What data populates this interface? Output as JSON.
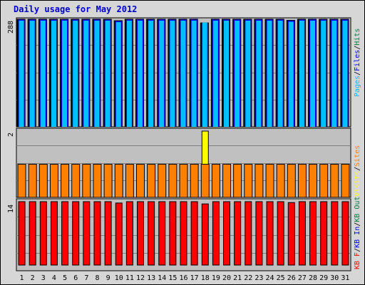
{
  "chart_data": {
    "type": "bar",
    "title": "Daily usage for May 2012",
    "categories": [
      "1",
      "2",
      "3",
      "4",
      "5",
      "6",
      "7",
      "8",
      "9",
      "10",
      "11",
      "12",
      "13",
      "14",
      "15",
      "16",
      "17",
      "18",
      "19",
      "20",
      "21",
      "22",
      "23",
      "24",
      "25",
      "26",
      "27",
      "28",
      "29",
      "30",
      "31"
    ],
    "weekend_days": [
      "5",
      "6",
      "12",
      "13",
      "19",
      "20",
      "26",
      "27"
    ],
    "panels": [
      {
        "id": "hits",
        "ymax_label": "288",
        "ymax": 288,
        "legend": [
          {
            "text": "Pages",
            "color": "#00c0ff"
          },
          {
            "text": "/",
            "color": "#000000"
          },
          {
            "text": "Files",
            "color": "#0000ff"
          },
          {
            "text": "/",
            "color": "#000000"
          },
          {
            "text": "Hits",
            "color": "#008040"
          }
        ],
        "series": [
          {
            "name": "Pages",
            "color": "#00c0ff",
            "values": [
              288,
              288,
              288,
              288,
              288,
              288,
              288,
              288,
              288,
              284,
              288,
              288,
              288,
              288,
              288,
              288,
              288,
              283,
              288,
              288,
              288,
              288,
              288,
              288,
              288,
              285,
              288,
              288,
              288,
              288,
              288
            ]
          },
          {
            "name": "Files",
            "color": "#0000ff",
            "values": [
              288,
              288,
              288,
              288,
              288,
              288,
              288,
              288,
              288,
              284,
              288,
              288,
              288,
              288,
              288,
              288,
              288,
              278,
              288,
              288,
              288,
              288,
              288,
              288,
              288,
              285,
              288,
              288,
              288,
              288,
              288
            ]
          },
          {
            "name": "Hits",
            "color": "#008040",
            "values": [
              288,
              288,
              288,
              288,
              288,
              288,
              288,
              288,
              288,
              284,
              288,
              288,
              288,
              288,
              288,
              288,
              288,
              278,
              288,
              288,
              288,
              288,
              288,
              288,
              288,
              285,
              288,
              288,
              288,
              288,
              288
            ]
          }
        ]
      },
      {
        "id": "visits",
        "ymax_label": "2",
        "ymax": 2,
        "legend": [
          {
            "text": "Visits",
            "color": "#ffff00"
          },
          {
            "text": "/",
            "color": "#000000"
          },
          {
            "text": "Sites",
            "color": "#ff8000"
          }
        ],
        "series": [
          {
            "name": "Visits",
            "color": "#ffff00",
            "values": [
              1,
              1,
              1,
              1,
              1,
              1,
              1,
              1,
              1,
              1,
              1,
              1,
              1,
              1,
              1,
              1,
              1,
              2,
              1,
              1,
              1,
              1,
              1,
              1,
              1,
              1,
              1,
              1,
              1,
              1,
              1
            ]
          },
          {
            "name": "Sites",
            "color": "#ff8000",
            "values": [
              1,
              1,
              1,
              1,
              1,
              1,
              1,
              1,
              1,
              1,
              1,
              1,
              1,
              1,
              1,
              1,
              1,
              1,
              1,
              1,
              1,
              1,
              1,
              1,
              1,
              1,
              1,
              1,
              1,
              1,
              1
            ]
          }
        ]
      },
      {
        "id": "kbytes",
        "ymax_label": "14",
        "ymax": 14,
        "legend": [
          {
            "text": "KB F",
            "color": "#ff0000"
          },
          {
            "text": "/",
            "color": "#000000"
          },
          {
            "text": "KB In",
            "color": "#0000ff"
          },
          {
            "text": "/",
            "color": "#000000"
          },
          {
            "text": "KB Out",
            "color": "#008040"
          }
        ],
        "series": [
          {
            "name": "KB F",
            "color": "#ff0000",
            "values": [
              14,
              14,
              14,
              14,
              14,
              14,
              14,
              14,
              14,
              13.7,
              14,
              14,
              14,
              14,
              14,
              14,
              14,
              13.5,
              14,
              14,
              14,
              14,
              14,
              14,
              14,
              13.8,
              14,
              14,
              14,
              14,
              14
            ]
          }
        ]
      }
    ]
  }
}
